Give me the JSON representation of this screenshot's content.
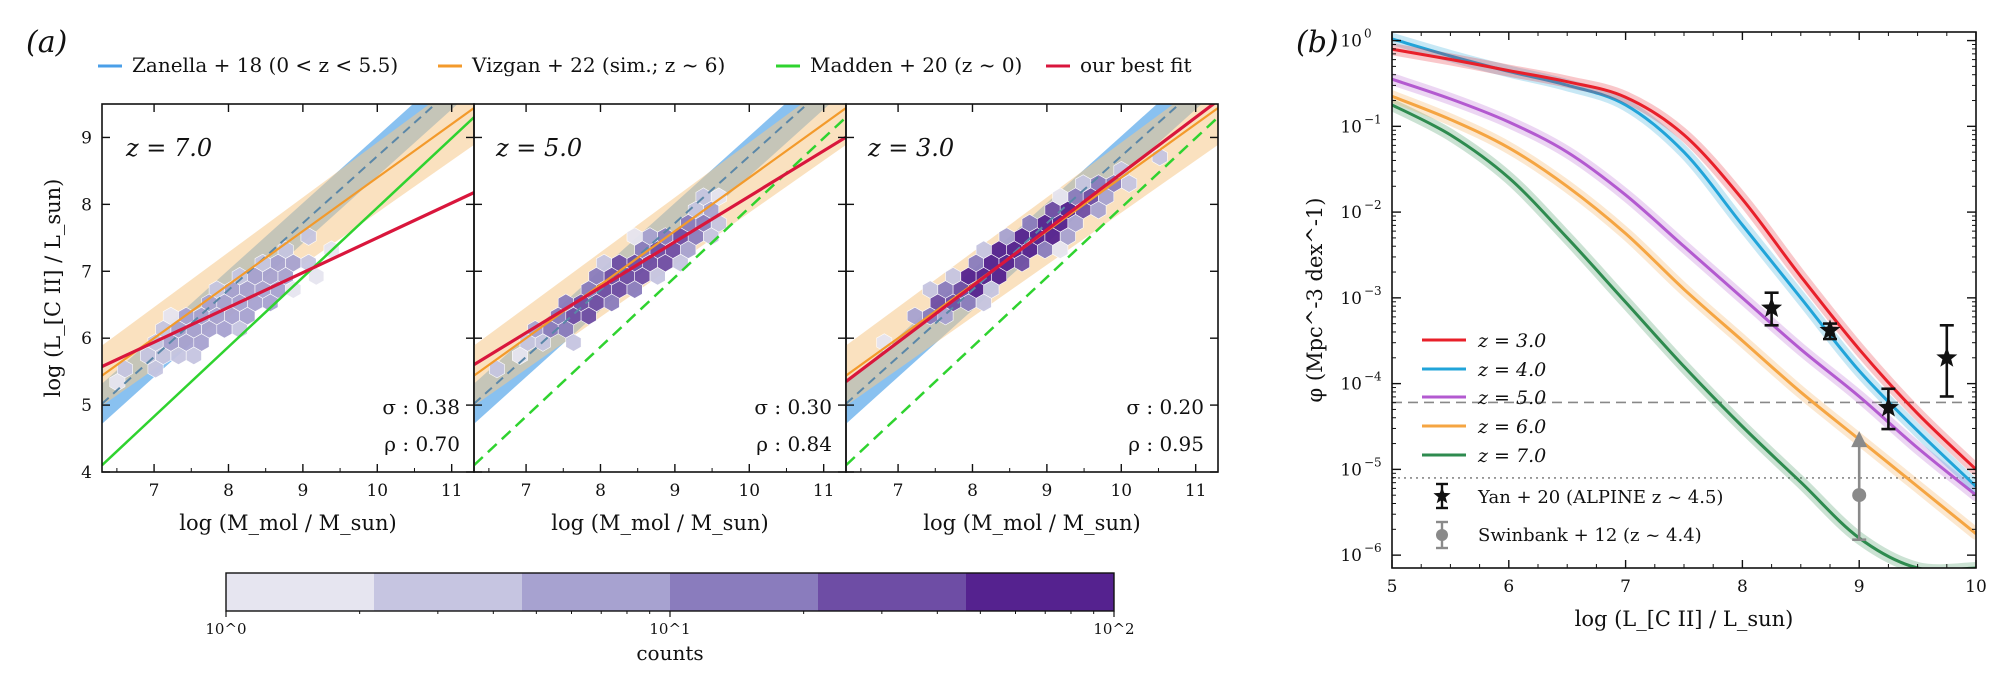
{
  "panel_labels": {
    "a": "(a)",
    "b": "(b)"
  },
  "legend_a": [
    {
      "label": "Zanella + 18 (0 < z < 5.5)",
      "color": "#4a9fe8"
    },
    {
      "label": "Vizgan + 22 (sim.; z ~ 6)",
      "color": "#f39a2b"
    },
    {
      "label": "Madden + 20 (z ~ 0)",
      "color": "#2fd32f"
    },
    {
      "label": "our best fit",
      "color": "#d9163c"
    }
  ],
  "colorbar": {
    "label": "counts",
    "ticks": [
      "10^0",
      "10^1",
      "10^2"
    ],
    "colors": [
      "#e6e5f0",
      "#c6c5e1",
      "#a7a2d0",
      "#8a7cbd",
      "#6e4da5",
      "#55228f"
    ]
  },
  "chart_data": [
    {
      "type": "scatter",
      "title": "z = 7.0",
      "xlabel": "log (M_mol / M_sun)",
      "ylabel": "log (L_[C II] / L_sun)",
      "xlim": [
        6.3,
        11.3
      ],
      "ylim": [
        4,
        9.5
      ],
      "xticks": [
        7,
        8,
        9,
        10,
        11
      ],
      "yticks": [
        4,
        5,
        6,
        7,
        8,
        9
      ],
      "sigma": "σ : 0.38",
      "rho": "ρ : 0.70",
      "hexbin": {
        "center": [
          8.0,
          6.45
        ],
        "slope": 0.78,
        "spread_along": 1.6,
        "spread_perp": 0.38,
        "peak_level": 3,
        "cell_size": 0.19,
        "seed": 11
      },
      "best_fit": {
        "slope": 0.52,
        "intercept": 2.3
      },
      "zanella": {
        "slope": 1.0,
        "intercept": -1.28
      },
      "vizgan": {
        "slope": 0.8,
        "intercept": 0.4
      },
      "madden": {
        "slope": 1.04,
        "intercept": -2.45
      }
    },
    {
      "type": "scatter",
      "title": "z = 5.0",
      "xlabel": "log (M_mol / M_sun)",
      "ylabel": "",
      "xlim": [
        6.3,
        11.3
      ],
      "ylim": [
        4,
        9.5
      ],
      "xticks": [
        7,
        8,
        9,
        10,
        11
      ],
      "yticks": [
        4,
        5,
        6,
        7,
        8,
        9
      ],
      "sigma": "σ : 0.30",
      "rho": "ρ : 0.84",
      "hexbin": {
        "center": [
          8.3,
          6.9
        ],
        "slope": 0.78,
        "spread_along": 1.9,
        "spread_perp": 0.34,
        "peak_level": 5,
        "cell_size": 0.19,
        "seed": 23
      },
      "best_fit": {
        "slope": 0.68,
        "intercept": 1.32
      },
      "zanella": {
        "slope": 1.0,
        "intercept": -1.28
      },
      "vizgan": {
        "slope": 0.8,
        "intercept": 0.4
      },
      "madden": {
        "slope": 1.04,
        "intercept": -2.45
      }
    },
    {
      "type": "scatter",
      "title": "z = 3.0",
      "xlabel": "log (M_mol / M_sun)",
      "ylabel": "",
      "xlim": [
        6.3,
        11.3
      ],
      "ylim": [
        4,
        9.5
      ],
      "xticks": [
        7,
        8,
        9,
        10,
        11
      ],
      "yticks": [
        4,
        5,
        6,
        7,
        8,
        9
      ],
      "sigma": "σ : 0.20",
      "rho": "ρ : 0.95",
      "hexbin": {
        "center": [
          8.6,
          7.3
        ],
        "slope": 0.8,
        "spread_along": 2.1,
        "spread_perp": 0.3,
        "peak_level": 6,
        "cell_size": 0.19,
        "seed": 37
      },
      "best_fit": {
        "slope": 0.84,
        "intercept": 0.06
      },
      "zanella": {
        "slope": 1.0,
        "intercept": -1.28
      },
      "vizgan": {
        "slope": 0.8,
        "intercept": 0.4
      },
      "madden": {
        "slope": 1.04,
        "intercept": -2.45
      }
    },
    {
      "type": "line",
      "title": "",
      "xlabel": "log (L_[C II] / L_sun)",
      "ylabel": "φ (Mpc^-3 dex^-1)",
      "xlim": [
        5,
        10
      ],
      "ylim_log10": [
        -6.15,
        0.1
      ],
      "xticks": [
        5,
        6,
        7,
        8,
        9,
        10
      ],
      "yticks_log10": [
        -6,
        -5,
        -4,
        -3,
        -2,
        -1,
        0
      ],
      "series": [
        {
          "name": "z = 3.0",
          "color": "#e8202a",
          "x": [
            5.0,
            5.5,
            6.0,
            6.5,
            7.0,
            7.5,
            8.0,
            8.5,
            9.0,
            9.5,
            10.0
          ],
          "log_phi": [
            -0.1,
            -0.22,
            -0.35,
            -0.48,
            -0.66,
            -1.1,
            -1.85,
            -2.75,
            -3.6,
            -4.35,
            -5.0
          ]
        },
        {
          "name": "z = 4.0",
          "color": "#21a4d9",
          "x": [
            5.0,
            5.5,
            6.0,
            6.5,
            7.0,
            7.5,
            8.0,
            8.5,
            9.0,
            9.5,
            10.0
          ],
          "log_phi": [
            0.02,
            -0.18,
            -0.36,
            -0.52,
            -0.75,
            -1.3,
            -2.15,
            -3.0,
            -3.85,
            -4.55,
            -5.2
          ]
        },
        {
          "name": "z = 5.0",
          "color": "#b35ad0",
          "x": [
            5.0,
            5.5,
            6.0,
            6.5,
            7.0,
            7.5,
            8.0,
            8.5,
            9.0,
            9.5,
            10.0
          ],
          "log_phi": [
            -0.45,
            -0.68,
            -0.95,
            -1.3,
            -1.8,
            -2.4,
            -3.0,
            -3.6,
            -4.15,
            -4.75,
            -5.3
          ]
        },
        {
          "name": "z = 6.0",
          "color": "#f5a542",
          "x": [
            5.0,
            5.5,
            6.0,
            6.5,
            7.0,
            7.5,
            8.0,
            8.5,
            9.0,
            9.5,
            10.0
          ],
          "log_phi": [
            -0.65,
            -0.92,
            -1.25,
            -1.7,
            -2.25,
            -2.9,
            -3.5,
            -4.1,
            -4.65,
            -5.2,
            -5.75
          ]
        },
        {
          "name": "z = 7.0",
          "color": "#2e8b4f",
          "x": [
            5.0,
            5.5,
            6.0,
            6.5,
            7.0,
            7.5,
            8.0,
            8.5,
            9.0,
            9.5,
            10.0
          ],
          "log_phi": [
            -0.75,
            -1.1,
            -1.6,
            -2.3,
            -3.05,
            -3.8,
            -4.5,
            -5.15,
            -5.8,
            -6.15,
            -6.15
          ]
        }
      ],
      "hlines_log10": [
        {
          "y": -4.22,
          "style": "dashed"
        },
        {
          "y": -5.1,
          "style": "dotted"
        }
      ],
      "points": [
        {
          "name": "Yan + 20 (ALPINE z ~ 4.5)",
          "marker": "star",
          "color": "#111111",
          "x": [
            8.25,
            8.75,
            9.25,
            9.75
          ],
          "log_phi": [
            -3.12,
            -3.38,
            -4.28,
            -3.7
          ],
          "log_err_lo": [
            0.2,
            0.1,
            0.25,
            0.45
          ],
          "log_err_hi": [
            0.18,
            0.08,
            0.22,
            0.38
          ]
        },
        {
          "name": "Swinbank + 12 (z ~ 4.4)",
          "marker": "circle",
          "color": "#8a8a8a",
          "x": [
            9.0
          ],
          "log_phi": [
            -5.3
          ],
          "log_err_lo": [
            0.52
          ],
          "log_err_hi": [
            0.7
          ],
          "lower_limit": true
        }
      ]
    }
  ]
}
